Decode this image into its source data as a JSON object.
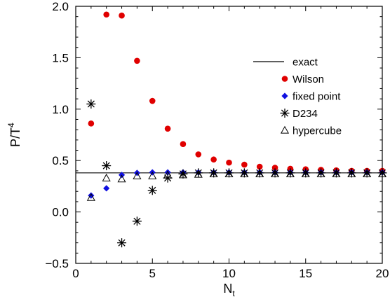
{
  "chart_data": {
    "type": "scatter",
    "title": "",
    "xlabel": "N",
    "xlabel_sub": "t",
    "ylabel": "P/T",
    "ylabel_sup": "4",
    "xlim": [
      0,
      20
    ],
    "ylim": [
      -0.5,
      2.0
    ],
    "xticks": [
      0,
      5,
      10,
      15,
      20
    ],
    "xtick_labels": [
      "0",
      "5",
      "10",
      "15",
      "20"
    ],
    "yticks": [
      -0.5,
      0.0,
      0.5,
      1.0,
      1.5,
      2.0
    ],
    "ytick_labels": [
      "−0.5",
      "0.0",
      "0.5",
      "1.0",
      "1.5",
      "2.0"
    ],
    "grid": false,
    "legend_position": "top-right",
    "exact_line": {
      "name": "exact",
      "y": 0.38,
      "color": "#000000"
    },
    "series": [
      {
        "name": "Wilson",
        "marker": "circle",
        "color": "#e00000",
        "x": [
          1,
          2,
          3,
          4,
          5,
          6,
          7,
          8,
          9,
          10,
          11,
          12,
          13,
          14,
          15,
          16,
          17,
          18,
          19,
          20
        ],
        "y": [
          0.86,
          1.92,
          1.91,
          1.47,
          1.08,
          0.81,
          0.66,
          0.56,
          0.51,
          0.48,
          0.46,
          0.44,
          0.43,
          0.42,
          0.415,
          0.41,
          0.405,
          0.4,
          0.4,
          0.4
        ]
      },
      {
        "name": "fixed point",
        "marker": "diamond",
        "color": "#1010e0",
        "x": [
          1,
          2,
          3,
          4,
          5,
          6,
          7,
          8,
          9,
          10,
          11,
          12,
          13,
          14,
          15,
          16,
          17,
          18,
          19,
          20
        ],
        "y": [
          0.16,
          0.23,
          0.36,
          0.38,
          0.385,
          0.385,
          0.385,
          0.385,
          0.385,
          0.385,
          0.385,
          0.385,
          0.385,
          0.385,
          0.385,
          0.385,
          0.385,
          0.385,
          0.385,
          0.385
        ]
      },
      {
        "name": "D234",
        "marker": "asterisk",
        "color": "#000000",
        "x": [
          1,
          2,
          3,
          4,
          5,
          6,
          7,
          8,
          9,
          10,
          11,
          12,
          13,
          14,
          15,
          16,
          17,
          18,
          19,
          20
        ],
        "y": [
          1.05,
          0.45,
          -0.3,
          -0.09,
          0.21,
          0.33,
          0.37,
          0.38,
          0.38,
          0.38,
          0.38,
          0.38,
          0.38,
          0.38,
          0.38,
          0.38,
          0.38,
          0.38,
          0.38,
          0.38
        ]
      },
      {
        "name": "hypercube",
        "marker": "triangle",
        "color": "#000000",
        "x": [
          1,
          2,
          3,
          4,
          5,
          6,
          7,
          8,
          9,
          10,
          11,
          12,
          13,
          14,
          15,
          16,
          17,
          18,
          19,
          20
        ],
        "y": [
          0.14,
          0.33,
          0.32,
          0.35,
          0.35,
          0.36,
          0.36,
          0.365,
          0.37,
          0.37,
          0.37,
          0.37,
          0.37,
          0.37,
          0.37,
          0.37,
          0.37,
          0.37,
          0.37,
          0.37
        ]
      }
    ]
  }
}
